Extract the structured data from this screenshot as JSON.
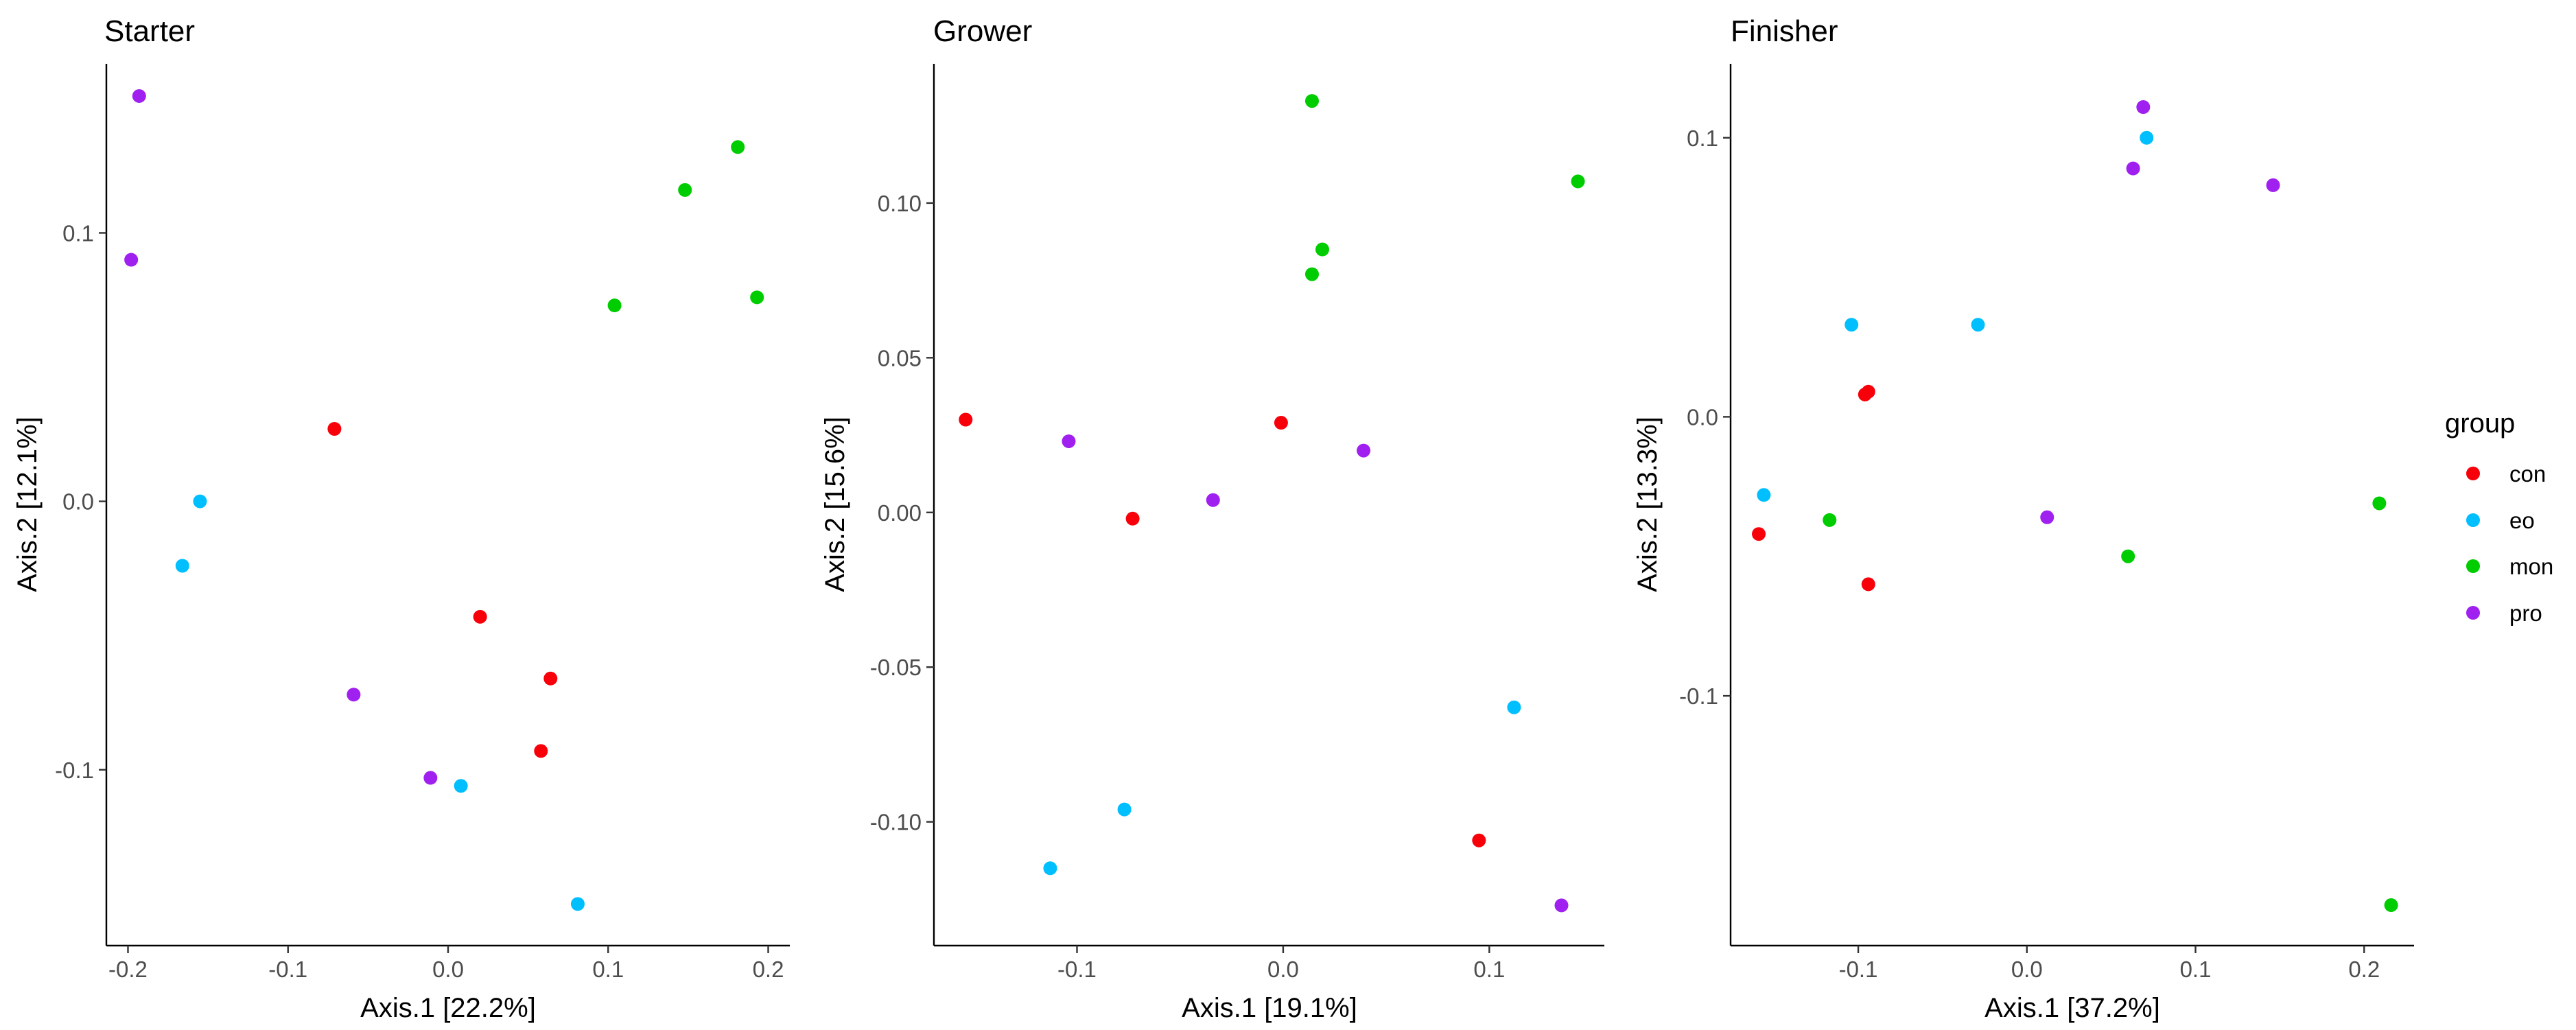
{
  "legend": {
    "title": "group",
    "entries": [
      {
        "label": "con",
        "color": "#F8000A"
      },
      {
        "label": "eo",
        "color": "#00BFFF"
      },
      {
        "label": "mon",
        "color": "#00CD00"
      },
      {
        "label": "pro",
        "color": "#A020F0"
      }
    ]
  },
  "chart_data": [
    {
      "type": "scatter",
      "title": "Starter",
      "xlabel": "Axis.1   [22.2%]",
      "ylabel": "Axis.2   [12.1%]",
      "xlim": [
        -0.2135,
        0.2135
      ],
      "ylim": [
        -0.1655,
        0.163
      ],
      "xticks": [
        -0.2,
        -0.1,
        0.0,
        0.1,
        0.2
      ],
      "xtick_labels": [
        "-0.2",
        "-0.1",
        "0.0",
        "0.1",
        "0.2"
      ],
      "yticks": [
        -0.1,
        0.0,
        0.1
      ],
      "ytick_labels": [
        "-0.1",
        "0.0",
        "0.1"
      ],
      "series": [
        {
          "name": "con",
          "points": [
            [
              -0.071,
              0.027
            ],
            [
              0.02,
              -0.043
            ],
            [
              0.064,
              -0.066
            ],
            [
              0.058,
              -0.093
            ]
          ]
        },
        {
          "name": "eo",
          "points": [
            [
              -0.155,
              0.0
            ],
            [
              -0.166,
              -0.024
            ],
            [
              0.008,
              -0.106
            ],
            [
              0.081,
              -0.15
            ]
          ]
        },
        {
          "name": "mon",
          "points": [
            [
              0.104,
              0.073
            ],
            [
              0.148,
              0.116
            ],
            [
              0.181,
              0.132
            ],
            [
              0.193,
              0.076
            ]
          ]
        },
        {
          "name": "pro",
          "points": [
            [
              -0.193,
              0.151
            ],
            [
              -0.198,
              0.09
            ],
            [
              -0.059,
              -0.072
            ],
            [
              -0.011,
              -0.103
            ]
          ]
        }
      ]
    },
    {
      "type": "scatter",
      "title": "Grower",
      "xlabel": "Axis.1   [19.1%]",
      "ylabel": "Axis.2   [15.6%]",
      "xlim": [
        -0.1694,
        0.1558
      ],
      "ylim": [
        -0.14,
        0.145
      ],
      "xticks": [
        -0.1,
        0.0,
        0.1
      ],
      "xtick_labels": [
        "-0.1",
        "0.0",
        "0.1"
      ],
      "yticks": [
        -0.1,
        -0.05,
        0.0,
        0.05,
        0.1
      ],
      "ytick_labels": [
        "-0.10",
        "-0.05",
        "0.00",
        "0.05",
        "0.10"
      ],
      "series": [
        {
          "name": "con",
          "points": [
            [
              -0.154,
              0.03
            ],
            [
              -0.073,
              -0.002
            ],
            [
              -0.001,
              0.029
            ],
            [
              0.095,
              -0.106
            ]
          ]
        },
        {
          "name": "eo",
          "points": [
            [
              -0.113,
              -0.115
            ],
            [
              -0.077,
              -0.096
            ],
            [
              0.112,
              -0.063
            ]
          ]
        },
        {
          "name": "mon",
          "points": [
            [
              0.014,
              0.133
            ],
            [
              0.019,
              0.085
            ],
            [
              0.014,
              0.077
            ],
            [
              0.143,
              0.107
            ]
          ]
        },
        {
          "name": "pro",
          "points": [
            [
              -0.104,
              0.023
            ],
            [
              -0.034,
              0.004
            ],
            [
              0.039,
              0.02
            ],
            [
              0.135,
              -0.127
            ]
          ]
        }
      ]
    },
    {
      "type": "scatter",
      "title": "Finisher",
      "xlabel": "Axis.1   [37.2%]",
      "ylabel": "Axis.2   [13.3%]",
      "xlim": [
        -0.1757,
        0.2296
      ],
      "ylim": [
        -0.1895,
        0.1265
      ],
      "xticks": [
        -0.1,
        0.0,
        0.1,
        0.2
      ],
      "xtick_labels": [
        "-0.1",
        "0.0",
        "0.1",
        "0.2"
      ],
      "yticks": [
        -0.1,
        0.0,
        0.1
      ],
      "ytick_labels": [
        "-0.1",
        "0.0",
        "0.1"
      ],
      "series": [
        {
          "name": "con",
          "points": [
            [
              -0.159,
              -0.042
            ],
            [
              -0.094,
              0.009
            ],
            [
              -0.096,
              0.008
            ],
            [
              -0.094,
              -0.06
            ]
          ]
        },
        {
          "name": "eo",
          "points": [
            [
              -0.156,
              -0.028
            ],
            [
              -0.104,
              0.033
            ],
            [
              -0.029,
              0.033
            ],
            [
              0.071,
              0.1
            ]
          ]
        },
        {
          "name": "mon",
          "points": [
            [
              -0.117,
              -0.037
            ],
            [
              0.06,
              -0.05
            ],
            [
              0.209,
              -0.031
            ],
            [
              0.216,
              -0.175
            ]
          ]
        },
        {
          "name": "pro",
          "points": [
            [
              0.069,
              0.111
            ],
            [
              0.063,
              0.089
            ],
            [
              0.146,
              0.083
            ],
            [
              0.012,
              -0.036
            ]
          ]
        }
      ]
    }
  ]
}
